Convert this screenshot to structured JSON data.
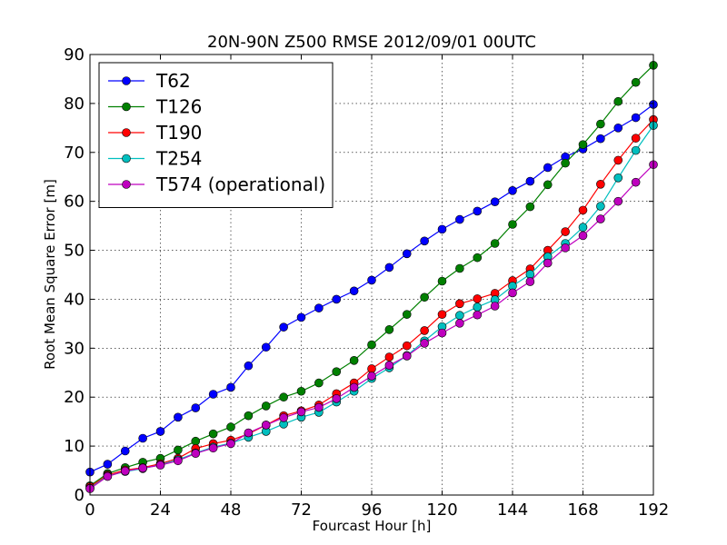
{
  "chart_data": {
    "type": "line",
    "title": "20N-90N Z500 RMSE  2012/09/01 00UTC",
    "xlabel": "Fourcast Hour [h]",
    "ylabel": "Root Mean Square Error [m]",
    "xlim": [
      0,
      192
    ],
    "ylim": [
      0,
      90
    ],
    "xticks": [
      0,
      24,
      48,
      72,
      96,
      120,
      144,
      168,
      192
    ],
    "yticks": [
      0,
      10,
      20,
      30,
      40,
      50,
      60,
      70,
      80,
      90
    ],
    "grid": true,
    "legend_position": "top-left",
    "x": [
      0,
      6,
      12,
      18,
      24,
      30,
      36,
      42,
      48,
      54,
      60,
      66,
      72,
      78,
      84,
      90,
      96,
      102,
      108,
      114,
      120,
      126,
      132,
      138,
      144,
      150,
      156,
      162,
      168,
      174,
      180,
      186,
      192
    ],
    "series": [
      {
        "name": "T62",
        "color": "#0000ff",
        "values": [
          4.7,
          6.3,
          9.0,
          11.6,
          13.0,
          15.9,
          17.8,
          20.6,
          22.0,
          26.4,
          30.2,
          34.3,
          36.3,
          38.2,
          40.0,
          41.7,
          43.9,
          46.5,
          49.3,
          51.9,
          54.3,
          56.3,
          58.0,
          59.9,
          62.2,
          64.1,
          66.9,
          69.1,
          70.7,
          72.8,
          75.0,
          77.1,
          79.8
        ]
      },
      {
        "name": "T126",
        "color": "#008000",
        "values": [
          1.9,
          4.4,
          5.6,
          6.7,
          7.5,
          9.2,
          11.0,
          12.5,
          13.9,
          16.2,
          18.2,
          20.0,
          21.2,
          22.9,
          25.2,
          27.5,
          30.7,
          33.8,
          36.9,
          40.4,
          43.7,
          46.3,
          48.5,
          51.4,
          55.3,
          58.9,
          63.4,
          67.8,
          71.6,
          75.8,
          80.4,
          84.3,
          87.8
        ]
      },
      {
        "name": "T190",
        "color": "#ff0000",
        "values": [
          1.7,
          4.1,
          5.1,
          5.6,
          6.4,
          7.5,
          9.5,
          10.5,
          11.2,
          12.5,
          14.3,
          16.2,
          17.2,
          18.4,
          20.7,
          22.9,
          25.8,
          28.2,
          30.5,
          33.6,
          36.9,
          39.1,
          40.1,
          41.2,
          43.8,
          46.2,
          50.0,
          53.8,
          58.2,
          63.5,
          68.4,
          72.9,
          76.7
        ]
      },
      {
        "name": "T254",
        "color": "#00bfbf",
        "values": [
          1.4,
          3.9,
          4.8,
          5.4,
          6.2,
          7.2,
          8.6,
          9.8,
          10.6,
          11.8,
          13.0,
          14.5,
          15.9,
          16.9,
          19.0,
          21.2,
          23.8,
          26.0,
          28.5,
          31.5,
          34.4,
          36.7,
          38.4,
          39.9,
          42.7,
          45.1,
          48.7,
          51.4,
          54.7,
          59.0,
          64.8,
          70.4,
          75.5
        ]
      },
      {
        "name": "T574 (operational)",
        "color": "#bf00bf",
        "values": [
          1.3,
          3.8,
          4.9,
          5.5,
          6.1,
          7.0,
          8.5,
          9.6,
          10.5,
          12.7,
          14.3,
          15.8,
          17.0,
          17.9,
          19.7,
          22.0,
          24.3,
          26.5,
          28.4,
          31.0,
          33.1,
          35.1,
          36.8,
          38.6,
          41.3,
          43.6,
          47.4,
          50.5,
          53.0,
          56.4,
          60.0,
          63.9,
          67.5
        ]
      }
    ]
  }
}
